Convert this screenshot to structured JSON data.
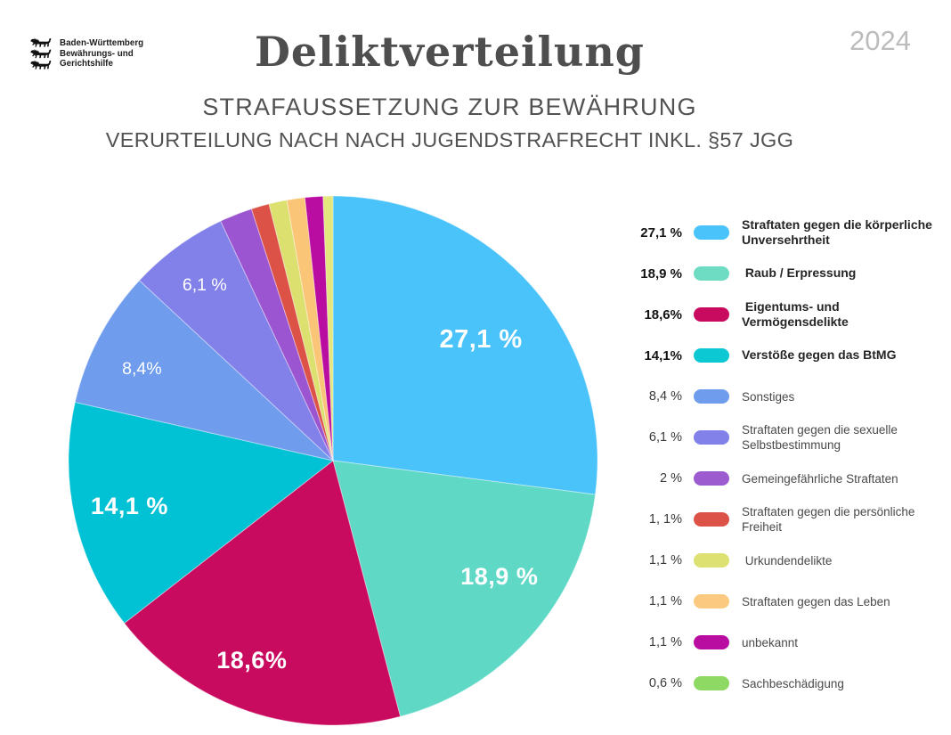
{
  "meta": {
    "year": "2024"
  },
  "logo": {
    "lines": [
      "Baden-Württemberg",
      "Bewährungs- und",
      "Gerichtshilfe"
    ]
  },
  "header": {
    "title": "Deliktverteilung",
    "subtitle1": "STRAFAUSSETZUNG ZUR BEWÄHRUNG",
    "subtitle2": "VERURTEILUNG NACH NACH JUGENDSTRAFRECHT INKL. §57 JGG"
  },
  "chart_data": {
    "type": "pie",
    "title": "Deliktverteilung",
    "unit": "%",
    "start_angle_deg": 0,
    "direction": "clockwise",
    "legend_position": "right",
    "labels_on_slices": true,
    "slices": [
      {
        "label": "Straftaten gegen die körperliche Unversehrtheit",
        "value": 27.1,
        "color": "#4ac3fb",
        "pie_label": "27,1 %"
      },
      {
        "label": "Raub / Erpressung",
        "value": 18.9,
        "color": "#5fd9c6",
        "pie_label": "18,9 %"
      },
      {
        "label": "Eigentums- und Vermögensdelikte",
        "value": 18.6,
        "color": "#c90b60",
        "pie_label": "18,6%"
      },
      {
        "label": "Verstöße gegen das BtMG",
        "value": 14.1,
        "color": "#00c2d4",
        "pie_label": "14,1 %"
      },
      {
        "label": "Sonstiges",
        "value": 8.4,
        "color": "#6f9ced",
        "pie_label": "8,4%"
      },
      {
        "label": "Straftaten gegen die sexuelle Selbstbestimmung",
        "value": 6.1,
        "color": "#8280e9",
        "pie_label": "6,1 %"
      },
      {
        "label": "Gemeingefährliche Straftaten",
        "value": 2,
        "color": "#9c55d0",
        "pie_label": ""
      },
      {
        "label": "Straftaten gegen die persönliche Freiheit",
        "value": 1.1,
        "color": "#dd5247",
        "pie_label": ""
      },
      {
        "label": "Urkundendelikte",
        "value": 1.1,
        "color": "#dce06f",
        "pie_label": ""
      },
      {
        "label": "Straftaten gegen das Leben",
        "value": 1.1,
        "color": "#fbc577",
        "pie_label": ""
      },
      {
        "label": "unbekannt",
        "value": 1.1,
        "color": "#b90da1",
        "pie_label": ""
      },
      {
        "label": "Sachbeschädigung",
        "value": 0.6,
        "color": "#e3e77e",
        "pie_label": ""
      }
    ]
  },
  "legend": {
    "items": [
      {
        "pct": "27,1 %",
        "label": "Straftaten gegen die körperliche Unversehrtheit",
        "color": "#4ac3fb",
        "bold": true
      },
      {
        "pct": "18,9 %",
        "label": " Raub / Erpressung",
        "color": "#6edcc3",
        "bold": true
      },
      {
        "pct": "18,6%",
        "label": " Eigentums- und Vermögensdelikte",
        "color": "#c90b60",
        "bold": true
      },
      {
        "pct": "14,1%",
        "label": "Verstöße gegen das BtMG",
        "color": "#0cc8d2",
        "bold": true
      },
      {
        "pct": "8,4 %",
        "label": "Sonstiges",
        "color": "#6f9ced",
        "bold": false
      },
      {
        "pct": "6,1 %",
        "label": "Straftaten gegen die sexuelle Selbstbestimmung",
        "color": "#8280e9",
        "bold": false
      },
      {
        "pct": "2 %",
        "label": "Gemeingefährliche Straftaten",
        "color": "#9c5cd0",
        "bold": false
      },
      {
        "pct": "1, 1%",
        "label": "Straftaten gegen die persönliche Freiheit",
        "color": "#dd5247",
        "bold": false
      },
      {
        "pct": "1,1 %",
        "label": " Urkundendelikte",
        "color": "#dde171",
        "bold": false
      },
      {
        "pct": "1,1 %",
        "label": "Straftaten gegen das Leben",
        "color": "#fbca80",
        "bold": false
      },
      {
        "pct": "1,1 %",
        "label": "unbekannt",
        "color": "#b90da1",
        "bold": false
      },
      {
        "pct": "0,6 %",
        "label": "Sachbeschädigung",
        "color": "#8ed964",
        "bold": false
      }
    ]
  }
}
